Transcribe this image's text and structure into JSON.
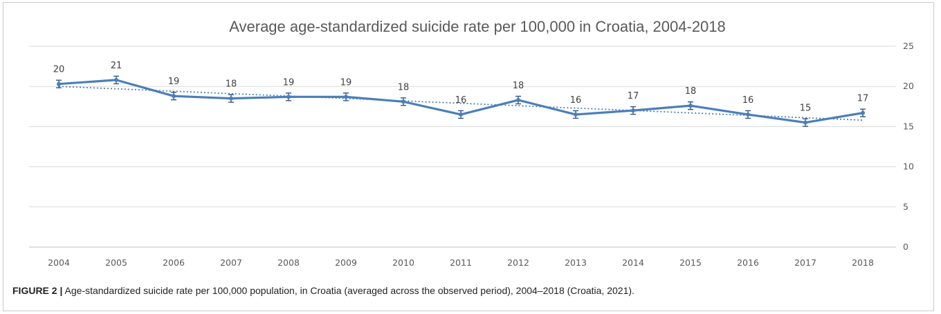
{
  "chart_data": {
    "type": "line",
    "title": "Average age-standardized suicide rate per 100,000 in Croatia, 2004-2018",
    "categories": [
      "2004",
      "2005",
      "2006",
      "2007",
      "2008",
      "2009",
      "2010",
      "2011",
      "2012",
      "2013",
      "2014",
      "2015",
      "2016",
      "2017",
      "2018"
    ],
    "series": [
      {
        "values": [
          20.3,
          20.8,
          18.8,
          18.5,
          18.7,
          18.7,
          18.1,
          16.5,
          18.3,
          16.5,
          17.0,
          17.6,
          16.5,
          15.5,
          16.7
        ],
        "error": [
          0.3,
          0.3,
          0.3,
          0.3,
          0.3,
          0.3,
          0.3,
          0.3,
          0.3,
          0.3,
          0.3,
          0.3,
          0.3,
          0.3,
          0.3
        ],
        "labels": [
          "20",
          "21",
          "19",
          "18",
          "19",
          "19",
          "18",
          "16",
          "18",
          "16",
          "17",
          "18",
          "16",
          "15",
          "17"
        ],
        "color": "#4a7ebb"
      }
    ],
    "trendline": {
      "type": "linear",
      "style": "dotted",
      "color": "#4a7ebb",
      "start": 20.0,
      "end": 15.8
    },
    "ylim": [
      0,
      25
    ],
    "yticks": [
      0,
      5,
      10,
      15,
      20,
      25
    ],
    "y_axis_side": "right",
    "grid": true,
    "xlabel": "",
    "ylabel": ""
  },
  "caption": {
    "label": "FIGURE 2 |",
    "text": " Age-standardized suicide rate per 100,000 population, in Croatia (averaged across the observed period), 2004–2018 (Croatia, 2021)."
  }
}
